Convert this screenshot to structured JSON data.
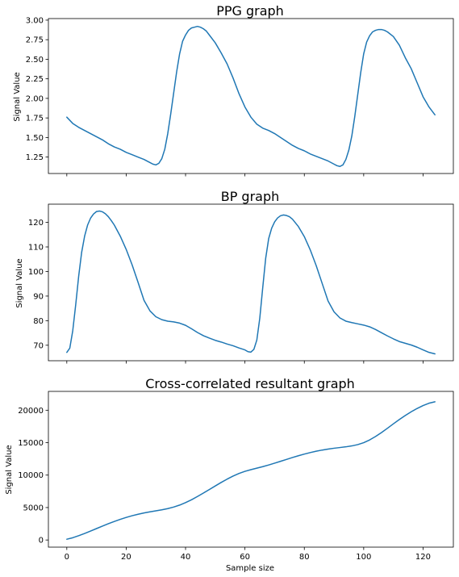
{
  "chart_data": [
    {
      "type": "line",
      "title": "PPG graph",
      "xlabel": "",
      "ylabel": "Signal Value",
      "xlim": [
        -6.2,
        130.2
      ],
      "ylim": [
        1.04,
        3.02
      ],
      "x_ticks": [
        0,
        20,
        40,
        60,
        80,
        100,
        120
      ],
      "show_x_tick_labels": false,
      "y_ticks": [
        1.25,
        1.5,
        1.75,
        2.0,
        2.25,
        2.5,
        2.75,
        3.0
      ],
      "y_tick_labels": [
        "1.25",
        "1.50",
        "1.75",
        "2.00",
        "2.25",
        "2.50",
        "2.75",
        "3.00"
      ],
      "grid": false,
      "series": [
        {
          "color": "#1f77b4",
          "points": [
            [
              0,
              1.76
            ],
            [
              2,
              1.68
            ],
            [
              4,
              1.63
            ],
            [
              6,
              1.59
            ],
            [
              8,
              1.55
            ],
            [
              10,
              1.51
            ],
            [
              12,
              1.47
            ],
            [
              14,
              1.42
            ],
            [
              16,
              1.38
            ],
            [
              18,
              1.35
            ],
            [
              20,
              1.31
            ],
            [
              22,
              1.28
            ],
            [
              24,
              1.25
            ],
            [
              26,
              1.22
            ],
            [
              28,
              1.18
            ],
            [
              29,
              1.16
            ],
            [
              30,
              1.15
            ],
            [
              31,
              1.17
            ],
            [
              32,
              1.23
            ],
            [
              33,
              1.35
            ],
            [
              34,
              1.55
            ],
            [
              35,
              1.8
            ],
            [
              36,
              2.07
            ],
            [
              37,
              2.34
            ],
            [
              38,
              2.57
            ],
            [
              39,
              2.73
            ],
            [
              40,
              2.81
            ],
            [
              41,
              2.87
            ],
            [
              42,
              2.9
            ],
            [
              43,
              2.91
            ],
            [
              44,
              2.92
            ],
            [
              45,
              2.91
            ],
            [
              46,
              2.89
            ],
            [
              47,
              2.86
            ],
            [
              48,
              2.81
            ],
            [
              50,
              2.71
            ],
            [
              52,
              2.58
            ],
            [
              54,
              2.44
            ],
            [
              56,
              2.26
            ],
            [
              58,
              2.06
            ],
            [
              60,
              1.89
            ],
            [
              62,
              1.76
            ],
            [
              64,
              1.67
            ],
            [
              66,
              1.62
            ],
            [
              68,
              1.59
            ],
            [
              70,
              1.55
            ],
            [
              72,
              1.5
            ],
            [
              74,
              1.45
            ],
            [
              76,
              1.4
            ],
            [
              78,
              1.36
            ],
            [
              80,
              1.33
            ],
            [
              82,
              1.29
            ],
            [
              84,
              1.26
            ],
            [
              86,
              1.23
            ],
            [
              88,
              1.2
            ],
            [
              90,
              1.16
            ],
            [
              91,
              1.14
            ],
            [
              92,
              1.13
            ],
            [
              93,
              1.15
            ],
            [
              94,
              1.22
            ],
            [
              95,
              1.34
            ],
            [
              96,
              1.52
            ],
            [
              97,
              1.77
            ],
            [
              98,
              2.05
            ],
            [
              99,
              2.33
            ],
            [
              100,
              2.57
            ],
            [
              101,
              2.72
            ],
            [
              102,
              2.8
            ],
            [
              103,
              2.85
            ],
            [
              104,
              2.87
            ],
            [
              105,
              2.88
            ],
            [
              106,
              2.88
            ],
            [
              107,
              2.87
            ],
            [
              108,
              2.85
            ],
            [
              110,
              2.79
            ],
            [
              112,
              2.68
            ],
            [
              114,
              2.52
            ],
            [
              116,
              2.38
            ],
            [
              118,
              2.2
            ],
            [
              120,
              2.02
            ],
            [
              122,
              1.89
            ],
            [
              124,
              1.79
            ]
          ]
        }
      ]
    },
    {
      "type": "line",
      "title": "BP graph",
      "xlabel": "",
      "ylabel": "Signal Value",
      "xlim": [
        -6.2,
        130.2
      ],
      "ylim": [
        63.7,
        127.4
      ],
      "x_ticks": [
        0,
        20,
        40,
        60,
        80,
        100,
        120
      ],
      "show_x_tick_labels": false,
      "y_ticks": [
        70,
        80,
        90,
        100,
        110,
        120
      ],
      "y_tick_labels": [
        "70",
        "80",
        "90",
        "100",
        "110",
        "120"
      ],
      "grid": false,
      "series": [
        {
          "color": "#1f77b4",
          "points": [
            [
              0,
              67.1
            ],
            [
              1,
              68.8
            ],
            [
              2,
              75.9
            ],
            [
              3,
              86.5
            ],
            [
              4,
              98.1
            ],
            [
              5,
              107.8
            ],
            [
              6,
              114.4
            ],
            [
              7,
              118.9
            ],
            [
              8,
              121.7
            ],
            [
              9,
              123.4
            ],
            [
              10,
              124.4
            ],
            [
              11,
              124.6
            ],
            [
              12,
              124.3
            ],
            [
              13,
              123.5
            ],
            [
              14,
              122.3
            ],
            [
              15,
              120.7
            ],
            [
              16,
              118.9
            ],
            [
              18,
              114.4
            ],
            [
              20,
              109.0
            ],
            [
              22,
              102.7
            ],
            [
              24,
              95.6
            ],
            [
              26,
              88.3
            ],
            [
              28,
              84.0
            ],
            [
              30,
              81.6
            ],
            [
              32,
              80.4
            ],
            [
              34,
              79.8
            ],
            [
              36,
              79.5
            ],
            [
              38,
              79.0
            ],
            [
              40,
              78.1
            ],
            [
              42,
              76.7
            ],
            [
              44,
              75.2
            ],
            [
              46,
              73.9
            ],
            [
              48,
              72.9
            ],
            [
              50,
              72.0
            ],
            [
              52,
              71.3
            ],
            [
              54,
              70.5
            ],
            [
              56,
              69.8
            ],
            [
              58,
              68.9
            ],
            [
              60,
              68.1
            ],
            [
              61,
              67.4
            ],
            [
              62,
              67.2
            ],
            [
              63,
              68.3
            ],
            [
              64,
              72.1
            ],
            [
              65,
              81.0
            ],
            [
              66,
              93.5
            ],
            [
              67,
              105.5
            ],
            [
              68,
              113.4
            ],
            [
              69,
              117.6
            ],
            [
              70,
              120.2
            ],
            [
              71,
              121.8
            ],
            [
              72,
              122.7
            ],
            [
              73,
              123.0
            ],
            [
              74,
              122.8
            ],
            [
              75,
              122.3
            ],
            [
              76,
              121.3
            ],
            [
              78,
              118.3
            ],
            [
              80,
              114.2
            ],
            [
              82,
              108.8
            ],
            [
              84,
              102.4
            ],
            [
              86,
              95.2
            ],
            [
              88,
              88.0
            ],
            [
              90,
              83.6
            ],
            [
              92,
              81.1
            ],
            [
              94,
              79.8
            ],
            [
              96,
              79.2
            ],
            [
              98,
              78.7
            ],
            [
              100,
              78.2
            ],
            [
              102,
              77.5
            ],
            [
              104,
              76.4
            ],
            [
              106,
              75.1
            ],
            [
              108,
              73.8
            ],
            [
              110,
              72.6
            ],
            [
              112,
              71.5
            ],
            [
              114,
              70.8
            ],
            [
              116,
              70.1
            ],
            [
              118,
              69.2
            ],
            [
              120,
              68.1
            ],
            [
              122,
              67.1
            ],
            [
              124,
              66.5
            ]
          ]
        }
      ]
    },
    {
      "type": "line",
      "title": "Cross-correlated resultant graph",
      "xlabel": "Sample size",
      "ylabel": "Signal Value",
      "xlim": [
        -6.2,
        130.2
      ],
      "ylim": [
        -1100,
        22900
      ],
      "x_ticks": [
        0,
        20,
        40,
        60,
        80,
        100,
        120
      ],
      "x_tick_labels": [
        "0",
        "20",
        "40",
        "60",
        "80",
        "100",
        "120"
      ],
      "show_x_tick_labels": true,
      "y_ticks": [
        0,
        5000,
        10000,
        15000,
        20000
      ],
      "y_tick_labels": [
        "0",
        "5000",
        "10000",
        "15000",
        "20000"
      ],
      "grid": false,
      "series": [
        {
          "color": "#1f77b4",
          "points": [
            [
              0,
              120
            ],
            [
              2,
              350
            ],
            [
              4,
              660
            ],
            [
              6,
              1010
            ],
            [
              8,
              1380
            ],
            [
              10,
              1760
            ],
            [
              12,
              2140
            ],
            [
              14,
              2510
            ],
            [
              16,
              2860
            ],
            [
              18,
              3180
            ],
            [
              20,
              3480
            ],
            [
              22,
              3740
            ],
            [
              24,
              3970
            ],
            [
              26,
              4170
            ],
            [
              28,
              4340
            ],
            [
              30,
              4490
            ],
            [
              32,
              4650
            ],
            [
              34,
              4840
            ],
            [
              36,
              5080
            ],
            [
              38,
              5380
            ],
            [
              40,
              5760
            ],
            [
              42,
              6200
            ],
            [
              44,
              6700
            ],
            [
              46,
              7230
            ],
            [
              48,
              7780
            ],
            [
              50,
              8330
            ],
            [
              52,
              8870
            ],
            [
              54,
              9380
            ],
            [
              56,
              9850
            ],
            [
              58,
              10250
            ],
            [
              60,
              10580
            ],
            [
              62,
              10840
            ],
            [
              64,
              11070
            ],
            [
              66,
              11300
            ],
            [
              68,
              11560
            ],
            [
              70,
              11840
            ],
            [
              72,
              12130
            ],
            [
              74,
              12420
            ],
            [
              76,
              12710
            ],
            [
              78,
              12980
            ],
            [
              80,
              13240
            ],
            [
              82,
              13470
            ],
            [
              84,
              13680
            ],
            [
              86,
              13860
            ],
            [
              88,
              14010
            ],
            [
              90,
              14140
            ],
            [
              92,
              14250
            ],
            [
              94,
              14360
            ],
            [
              96,
              14500
            ],
            [
              98,
              14700
            ],
            [
              100,
              15000
            ],
            [
              102,
              15420
            ],
            [
              104,
              15950
            ],
            [
              106,
              16560
            ],
            [
              108,
              17220
            ],
            [
              110,
              17900
            ],
            [
              112,
              18560
            ],
            [
              114,
              19180
            ],
            [
              116,
              19760
            ],
            [
              118,
              20270
            ],
            [
              120,
              20720
            ],
            [
              122,
              21080
            ],
            [
              124,
              21300
            ]
          ]
        }
      ]
    }
  ]
}
